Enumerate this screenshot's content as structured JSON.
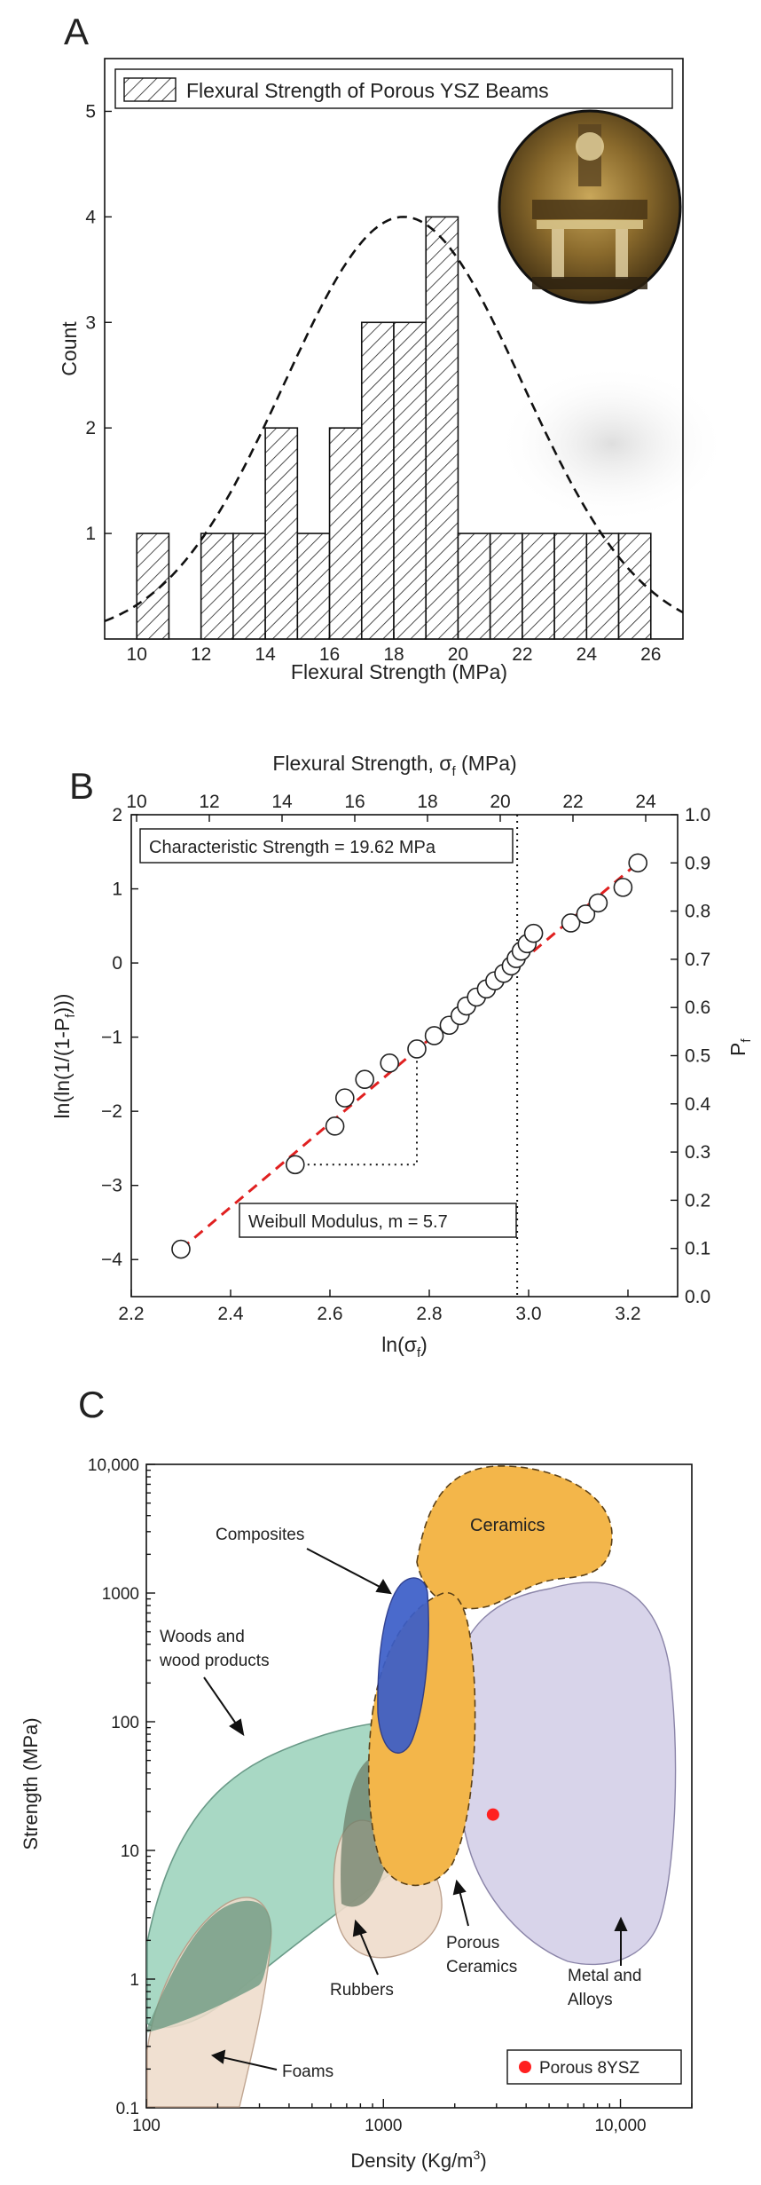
{
  "chart_data": [
    {
      "panel_label": "A",
      "type": "bar",
      "title": "",
      "xlabel": "Flexural Strength (MPa)",
      "ylabel": "Count",
      "xlim": [
        9,
        27
      ],
      "ylim": [
        0,
        5.5
      ],
      "x_ticks": [
        "10",
        "12",
        "14",
        "16",
        "18",
        "20",
        "22",
        "24",
        "26"
      ],
      "y_ticks": [
        "1",
        "2",
        "3",
        "4",
        "5"
      ],
      "legend": "Flexural Strength of Porous YSZ Beams",
      "legend_position": "top",
      "inset_photo": "three-point-bend-test-fixture",
      "fit_curve": "normal-distribution-dashed",
      "fit_mean": 18.3,
      "fit_sd": 3.7,
      "fit_peak": 4.0,
      "bins": [
        {
          "start": 10,
          "end": 11,
          "count": 1
        },
        {
          "start": 12,
          "end": 13,
          "count": 1
        },
        {
          "start": 13,
          "end": 14,
          "count": 1
        },
        {
          "start": 14,
          "end": 15,
          "count": 2
        },
        {
          "start": 15,
          "end": 16,
          "count": 1
        },
        {
          "start": 16,
          "end": 17,
          "count": 2
        },
        {
          "start": 17,
          "end": 18,
          "count": 3
        },
        {
          "start": 18,
          "end": 19,
          "count": 3
        },
        {
          "start": 19,
          "end": 20,
          "count": 4
        },
        {
          "start": 20,
          "end": 21,
          "count": 1
        },
        {
          "start": 21,
          "end": 22,
          "count": 1
        },
        {
          "start": 22,
          "end": 23,
          "count": 1
        },
        {
          "start": 23,
          "end": 24,
          "count": 1
        },
        {
          "start": 24,
          "end": 25,
          "count": 1
        },
        {
          "start": 25,
          "end": 26,
          "count": 1
        }
      ]
    },
    {
      "panel_label": "B",
      "type": "scatter",
      "title": "",
      "xlabel": "ln(σ",
      "xlabel_sub": "f",
      "xlabel_end": ")",
      "ylabel": "ln(ln(1/(1-P",
      "ylabel_sub": "f",
      "ylabel_end": ")))",
      "top_label": "Flexural Strength, σ",
      "top_label_sub": "f",
      "top_label_end": " (MPa)",
      "right_label": "P",
      "right_label_sub": "f",
      "xlim": [
        2.2,
        3.3
      ],
      "ylim": [
        -4.5,
        2
      ],
      "x_ticks": [
        "2.2",
        "2.4",
        "2.6",
        "2.8",
        "3.0",
        "3.2"
      ],
      "y_ticks": [
        "−4",
        "−3",
        "−2",
        "−1",
        "0",
        "1",
        "2"
      ],
      "top_ticks": [
        "10",
        "12",
        "14",
        "16",
        "18",
        "20",
        "22",
        "24"
      ],
      "right_ticks": [
        "0.0",
        "0.1",
        "0.2",
        "0.3",
        "0.4",
        "0.5",
        "0.6",
        "0.7",
        "0.8",
        "0.9",
        "1.0"
      ],
      "fit_line": {
        "x": [
          2.3,
          3.22
        ],
        "y": [
          -3.86,
          1.35
        ],
        "color": "#e02020",
        "style": "dashed"
      },
      "guide_vertical_x": 2.977,
      "guide_step": {
        "x1": 2.53,
        "x2": 2.775,
        "y1": -2.72,
        "y2": -1.3
      },
      "annotations": [
        "Characteristic Strength = 19.62 MPa",
        "Weibull Modulus, m = 5.7"
      ],
      "points": [
        [
          2.3,
          -3.86
        ],
        [
          2.53,
          -2.72
        ],
        [
          2.61,
          -2.2
        ],
        [
          2.63,
          -1.82
        ],
        [
          2.67,
          -1.57
        ],
        [
          2.72,
          -1.35
        ],
        [
          2.775,
          -1.16
        ],
        [
          2.81,
          -0.98
        ],
        [
          2.84,
          -0.84
        ],
        [
          2.862,
          -0.71
        ],
        [
          2.875,
          -0.58
        ],
        [
          2.895,
          -0.46
        ],
        [
          2.915,
          -0.35
        ],
        [
          2.932,
          -0.24
        ],
        [
          2.95,
          -0.14
        ],
        [
          2.965,
          -0.04
        ],
        [
          2.975,
          0.06
        ],
        [
          2.985,
          0.16
        ],
        [
          2.997,
          0.26
        ],
        [
          3.01,
          0.4
        ],
        [
          3.085,
          0.54
        ],
        [
          3.115,
          0.66
        ],
        [
          3.14,
          0.81
        ],
        [
          3.19,
          1.02
        ],
        [
          3.22,
          1.35
        ]
      ]
    },
    {
      "panel_label": "C",
      "type": "scatter",
      "title": "",
      "xlabel": "Density (Kg/m",
      "xlabel_sup": "3",
      "xlabel_end": ")",
      "ylabel": "Strength (MPa)",
      "x_scale": "log",
      "y_scale": "log",
      "xlim": [
        100,
        20000
      ],
      "ylim": [
        0.1,
        10000
      ],
      "x_ticks": [
        "100",
        "1000",
        "10,000"
      ],
      "y_ticks": [
        "0.1",
        "1",
        "10",
        "100",
        "1000",
        "10,000"
      ],
      "regions": [
        {
          "name": "Woods and wood products",
          "label1": "Woods and",
          "label2": "wood products",
          "color": "#a8d8c4"
        },
        {
          "name": "Foams",
          "color": "#efdccb"
        },
        {
          "name": "Rubbers",
          "color": "#efdccb"
        },
        {
          "name": "Composites",
          "color": "#3b5ec8"
        },
        {
          "name": "Ceramics",
          "color": "#f3b64a"
        },
        {
          "name": "Porous Ceramics",
          "label1": "Porous",
          "label2": "Ceramics",
          "color": "#f3b64a"
        },
        {
          "name": "Metal and Alloys",
          "label1": "Metal and",
          "label2": "Alloys",
          "color": "#d8d4ea"
        }
      ],
      "point": {
        "name": "Porous 8YSZ",
        "x": 2900,
        "y": 19,
        "color": "#ff2020"
      },
      "legend_position": "bottom-right"
    }
  ]
}
